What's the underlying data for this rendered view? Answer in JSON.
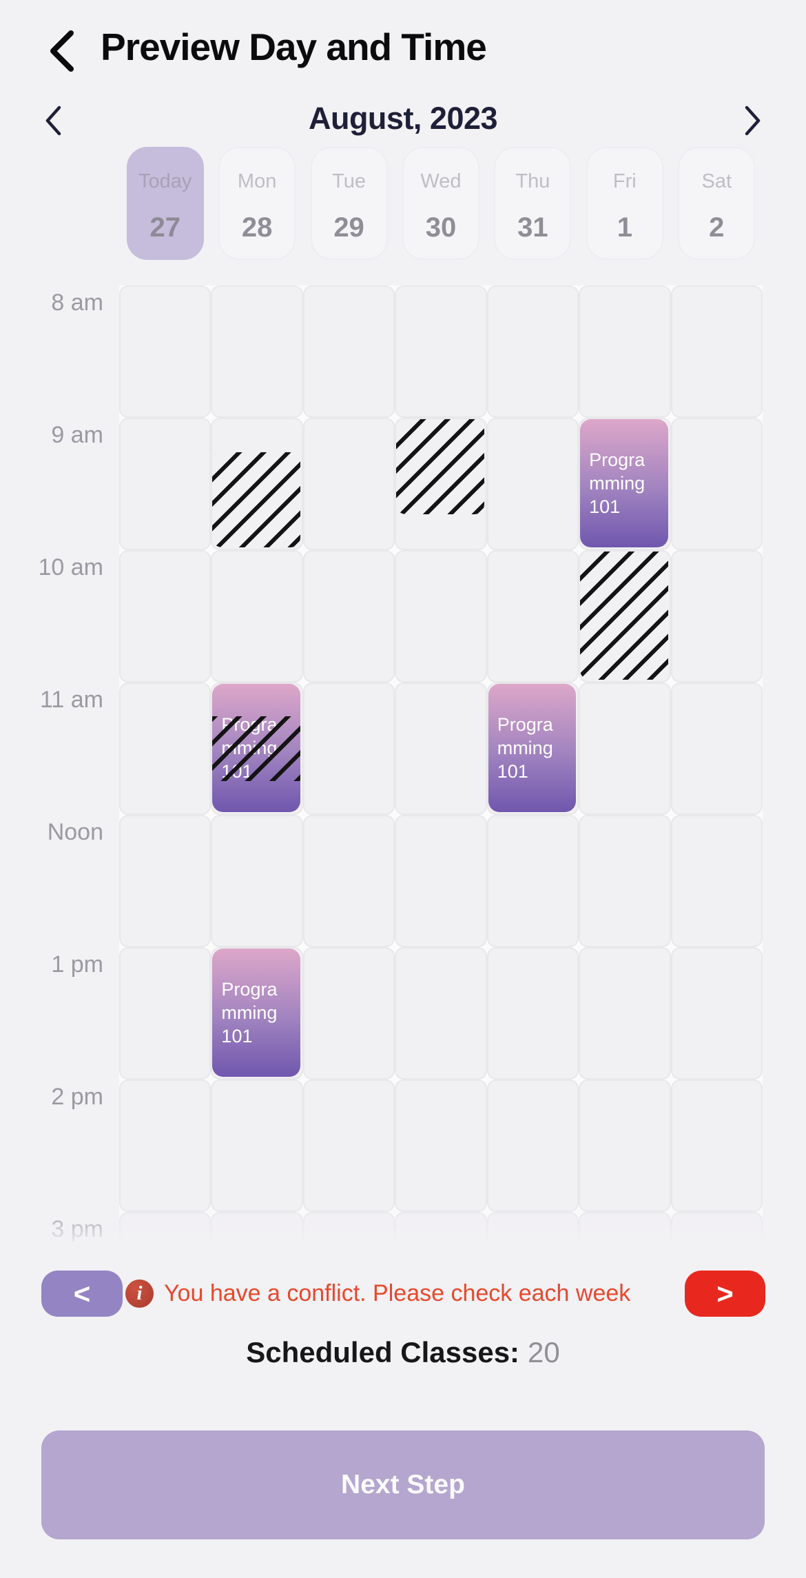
{
  "header": {
    "title": "Preview Day and Time",
    "back_icon": "chevron-left"
  },
  "month_nav": {
    "label": "August, 2023",
    "prev_icon": "chevron-left",
    "next_icon": "chevron-right"
  },
  "week_days": [
    {
      "name": "Today",
      "date": "27",
      "today": true
    },
    {
      "name": "Mon",
      "date": "28",
      "today": false
    },
    {
      "name": "Tue",
      "date": "29",
      "today": false
    },
    {
      "name": "Wed",
      "date": "30",
      "today": false
    },
    {
      "name": "Thu",
      "date": "31",
      "today": false
    },
    {
      "name": "Fri",
      "date": "1",
      "today": false
    },
    {
      "name": "Sat",
      "date": "2",
      "today": false
    }
  ],
  "time_labels": [
    "8 am",
    "9 am",
    "10 am",
    "11 am",
    "Noon",
    "1 pm",
    "2 pm",
    "3 pm"
  ],
  "events": [
    {
      "type": "hatch",
      "col": 1,
      "start": 9.25,
      "end": 10
    },
    {
      "type": "hatch",
      "col": 3,
      "start": 9,
      "end": 9.75
    },
    {
      "type": "class",
      "col": 5,
      "start": 9,
      "end": 10,
      "title": "Programming 101",
      "title_lines": [
        "Progra",
        "mming",
        "101"
      ]
    },
    {
      "type": "hatch",
      "col": 5,
      "start": 10,
      "end": 11
    },
    {
      "type": "class",
      "col": 1,
      "start": 11,
      "end": 12,
      "title": "Programming 101",
      "title_lines": [
        "Progra",
        "mming",
        "101"
      ],
      "conflict": true,
      "conflict_start": 11.25,
      "conflict_end": 11.76
    },
    {
      "type": "class",
      "col": 4,
      "start": 11,
      "end": 12,
      "title": "Programming 101",
      "title_lines": [
        "Progra",
        "mming",
        "101"
      ]
    },
    {
      "type": "class",
      "col": 1,
      "start": 13,
      "end": 14,
      "title": "Programming 101",
      "title_lines": [
        "Progra",
        "mming",
        "101"
      ]
    }
  ],
  "footer": {
    "prev_week_icon": "<",
    "next_week_icon": ">",
    "info_icon": "i",
    "conflict_message": "You have a conflict. Please check each week",
    "scheduled_label": "Scheduled Classes:",
    "scheduled_count": "20",
    "next_button_label": "Next Step"
  },
  "colors": {
    "background": "#f2f1f4",
    "title_text": "#0b0b0d",
    "month_text": "#1e2038",
    "today_pill": "#c6bcdb",
    "grid_cell": "#f1f0f3",
    "grid_line": "#e8e7ea",
    "event_gradient_top": "#dda7c9",
    "event_gradient_bottom": "#7057ae",
    "hatch_stripe": "#141414",
    "prev_button": "#9484c4",
    "next_button": "#e8281e",
    "conflict_text": "#e5492c",
    "info_badge": "#b5432f",
    "scheduled_count_text": "#909095",
    "next_step_button": "#b4a6ce"
  }
}
